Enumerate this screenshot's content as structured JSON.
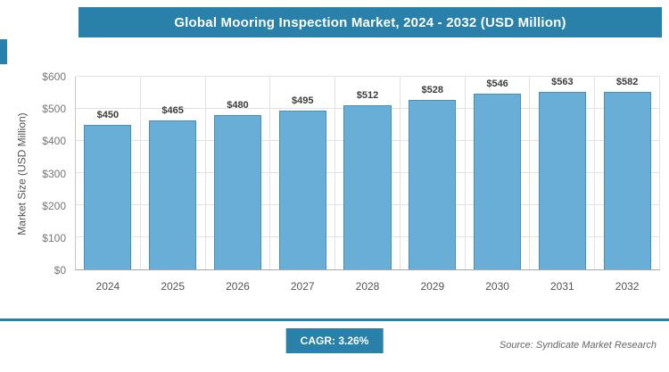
{
  "header": {
    "title": "Global Mooring Inspection Market, 2024 - 2032 (USD Million)"
  },
  "chart_data": {
    "type": "bar",
    "title": "Global Mooring Inspection Market, 2024 - 2032 (USD Million)",
    "categories": [
      "2024",
      "2025",
      "2026",
      "2027",
      "2028",
      "2029",
      "2030",
      "2031",
      "2032"
    ],
    "values": [
      450,
      465,
      480,
      495,
      512,
      528,
      546,
      563,
      582
    ],
    "value_labels": [
      "$450",
      "$465",
      "$480",
      "$495",
      "$512",
      "$528",
      "$546",
      "$563",
      "$582"
    ],
    "xlabel": "",
    "ylabel": "Market Size (USD Million)",
    "ylim": [
      0,
      600
    ],
    "yticks": [
      0,
      100,
      200,
      300,
      400,
      500,
      600
    ],
    "ytick_labels": [
      "$0",
      "$100",
      "$200",
      "$300",
      "$400",
      "$500",
      "$600"
    ],
    "grid": true,
    "legend": "none",
    "bar_color": "#69AED6",
    "bar_border": "#4690BF"
  },
  "footer": {
    "cagr_label": "CAGR: 3.26%",
    "source": "Source: Syndicate Market Research"
  },
  "colors": {
    "accent": "#2980A9",
    "gridline": "#e2e2e2",
    "text_muted": "#777777"
  }
}
